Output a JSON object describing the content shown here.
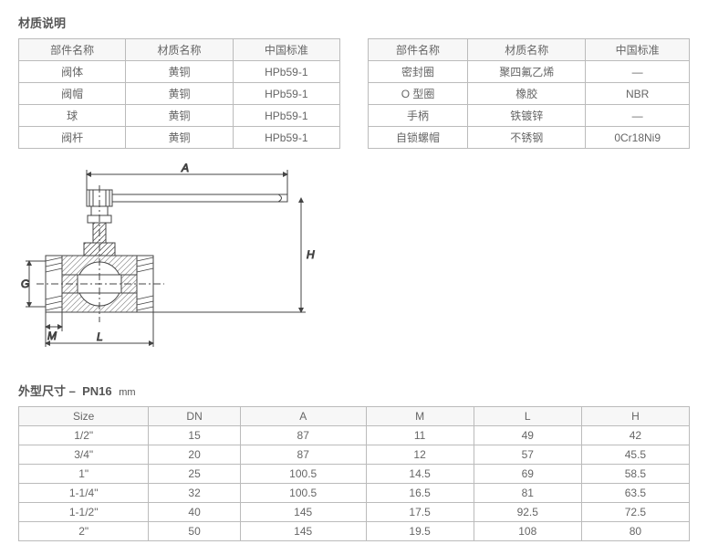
{
  "matTitle": "材质说明",
  "matHeaders": [
    "部件名称",
    "材质名称",
    "中国标准"
  ],
  "matLeft": [
    [
      "阀体",
      "黄铜",
      "HPb59-1"
    ],
    [
      "阀帽",
      "黄铜",
      "HPb59-1"
    ],
    [
      "球",
      "黄铜",
      "HPb59-1"
    ],
    [
      "阀杆",
      "黄铜",
      "HPb59-1"
    ]
  ],
  "matRight": [
    [
      "密封圈",
      "聚四氟乙烯",
      "—"
    ],
    [
      "O 型圈",
      "橡胶",
      "NBR"
    ],
    [
      "手柄",
      "铁镀锌",
      "—"
    ],
    [
      "自锁螺帽",
      "不锈钢",
      "0Cr18Ni9"
    ]
  ],
  "dimTitle": "外型尺寸 –",
  "dimSub": "PN16",
  "dimUnit": "mm",
  "dimHeaders": [
    "Size",
    "DN",
    "A",
    "M",
    "L",
    "H"
  ],
  "dimRows": [
    [
      "1/2\"",
      "15",
      "87",
      "11",
      "49",
      "42"
    ],
    [
      "3/4\"",
      "20",
      "87",
      "12",
      "57",
      "45.5"
    ],
    [
      "1\"",
      "25",
      "100.5",
      "14.5",
      "69",
      "58.5"
    ],
    [
      "1-1/4\"",
      "32",
      "100.5",
      "16.5",
      "81",
      "63.5"
    ],
    [
      "1-1/2\"",
      "40",
      "145",
      "17.5",
      "92.5",
      "72.5"
    ],
    [
      "2\"",
      "50",
      "145",
      "19.5",
      "108",
      "80"
    ]
  ],
  "diagLabels": {
    "A": "A",
    "H": "H",
    "G": "G",
    "M": "M",
    "L": "L"
  }
}
